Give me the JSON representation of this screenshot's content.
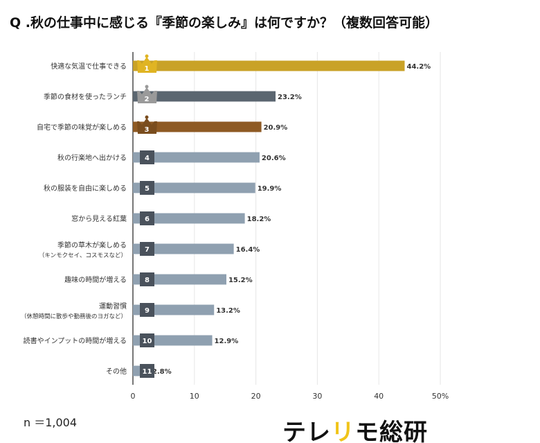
{
  "title": "Q .秋の仕事中に感じる『季節の楽しみ』は何ですか？（複数回答可能）",
  "sample": "n ＝1,004",
  "logo": {
    "part1": "テレ",
    "part2": "リ",
    "part3": "モ総研"
  },
  "chart_data": {
    "type": "bar",
    "orientation": "horizontal",
    "title": "Q .秋の仕事中に感じる『季節の楽しみ』は何ですか？（複数回答可能）",
    "categories": [
      [
        "快適な気温で仕事できる"
      ],
      [
        "季節の食材を使ったランチ"
      ],
      [
        "自宅で季節の味覚が楽しめる"
      ],
      [
        "秋の行楽地へ出かける"
      ],
      [
        "秋の服装を自由に楽しめる"
      ],
      [
        "窓から見える紅葉"
      ],
      [
        "季節の草木が楽しめる",
        "（キンモクセイ、コスモスなど）"
      ],
      [
        "趣味の時間が増える"
      ],
      [
        "運動習慣",
        "（休憩時間に散歩や勤務後のヨガなど）"
      ],
      [
        "読書やインプットの時間が増える"
      ],
      [
        "その他"
      ]
    ],
    "values": [
      44.2,
      23.2,
      20.9,
      20.6,
      19.9,
      18.2,
      16.4,
      15.2,
      13.2,
      12.9,
      2.8
    ],
    "value_labels": [
      "44.2%",
      "23.2%",
      "20.9%",
      "20.6%",
      "19.9%",
      "18.2%",
      "16.4%",
      "15.2%",
      "13.2%",
      "12.9%",
      "2.8%"
    ],
    "ranks": [
      "1",
      "2",
      "3",
      "4",
      "5",
      "6",
      "7",
      "8",
      "9",
      "10",
      "11"
    ],
    "colors": [
      "#c9a227",
      "#5b6670",
      "#8e5a24",
      "#8fa0b0",
      "#8fa0b0",
      "#8fa0b0",
      "#8fa0b0",
      "#8fa0b0",
      "#8fa0b0",
      "#8fa0b0",
      "#8fa0b0"
    ],
    "badge_colors": [
      "#e0b423",
      "#9a9a9a",
      "#7a4d1e",
      "#4a525c",
      "#4a525c",
      "#4a525c",
      "#4a525c",
      "#4a525c",
      "#4a525c",
      "#4a525c",
      "#4a525c"
    ],
    "crowns": [
      true,
      true,
      true,
      false,
      false,
      false,
      false,
      false,
      false,
      false,
      false
    ],
    "xticks": [
      "0",
      "10",
      "20",
      "30",
      "40",
      "50%"
    ],
    "xlim": [
      0,
      50
    ],
    "grid": true,
    "legend": "none"
  }
}
